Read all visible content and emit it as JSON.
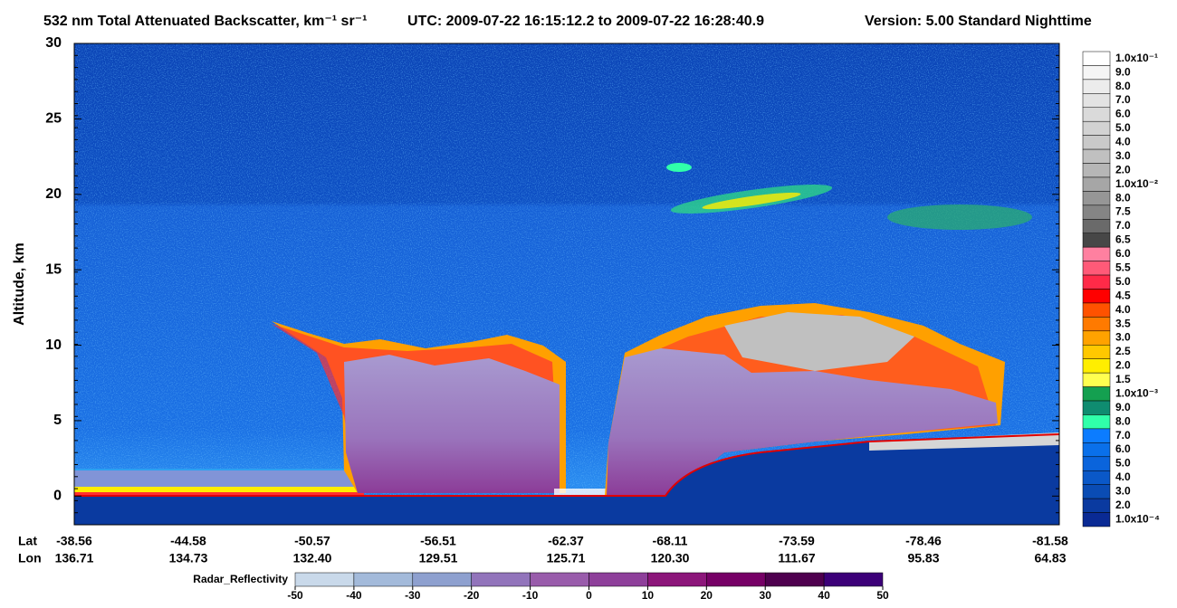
{
  "chart_data": {
    "type": "curtain",
    "title": "532 nm Total Attenuated Backscatter, km⁻¹ sr⁻¹",
    "subtitle": "UTC:  2009-07-22 16:15:12.2  to  2009-07-22 16:28:40.9",
    "version": "Version: 5.00  Standard  Nighttime",
    "y_label": "Altitude, km",
    "ylim": [
      -1.9,
      30
    ],
    "yticks": [
      0,
      5,
      10,
      15,
      20,
      25,
      30
    ],
    "lat_label": "Lat",
    "lon_label": "Lon",
    "lat": [
      "-38.56",
      "-44.58",
      "-50.57",
      "-56.51",
      "-62.37",
      "-68.11",
      "-73.59",
      "-78.46",
      "-81.58"
    ],
    "lon": [
      "136.71",
      "134.73",
      "132.40",
      "129.51",
      "125.71",
      "120.30",
      "111.67",
      "95.83",
      "64.83"
    ],
    "colorbar": {
      "labels": [
        "1.0x10⁻¹",
        "9.0",
        "8.0",
        "7.0",
        "6.0",
        "5.0",
        "4.0",
        "3.0",
        "2.0",
        "1.0x10⁻²",
        "8.0",
        "7.5",
        "7.0",
        "6.5",
        "6.0",
        "5.5",
        "5.0",
        "4.5",
        "4.0",
        "3.5",
        "3.0",
        "2.5",
        "2.0",
        "1.5",
        "1.0x10⁻³",
        "9.0",
        "8.0",
        "7.0",
        "6.0",
        "5.0",
        "4.0",
        "3.0",
        "2.0",
        "1.0x10⁻⁴"
      ],
      "colors": [
        "#ffffff",
        "#f5f5f5",
        "#ececec",
        "#e3e3e3",
        "#dadada",
        "#d2d2d2",
        "#c9c9c9",
        "#c0c0c0",
        "#b6b6b6",
        "#a6a6a6",
        "#969696",
        "#858585",
        "#6a6a6a",
        "#474747",
        "#ff80a0",
        "#ff5a78",
        "#ff2a48",
        "#ff0000",
        "#ff5200",
        "#ff7a00",
        "#ffa200",
        "#ffc800",
        "#ffee00",
        "#ffff50",
        "#14a050",
        "#0f8c70",
        "#30ffaa",
        "#0c7cff",
        "#0a70ea",
        "#0a64dc",
        "#0a58c8",
        "#0a4cb4",
        "#0a3aa0",
        "#0a2a94"
      ]
    },
    "radar_colorbar": {
      "label": "Radar_Reflectivity",
      "ticks": [
        -50,
        -40,
        -30,
        -20,
        -10,
        0,
        10,
        20,
        30,
        40,
        50
      ],
      "colors": [
        "#c9d9ea",
        "#a3bada",
        "#8ea0cf",
        "#9274bb",
        "#995cab",
        "#8e3f9a",
        "#8c167a",
        "#760066",
        "#4e004e",
        "#3c0078"
      ]
    }
  }
}
